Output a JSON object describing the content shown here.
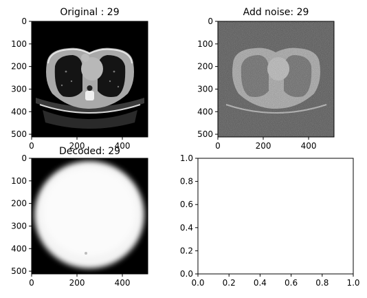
{
  "chart_data": [
    {
      "type": "image",
      "title": "Original : 29",
      "image_content": "chest CT axial slice",
      "x_ticks": [
        "0",
        "200",
        "400"
      ],
      "y_ticks": [
        "0",
        "100",
        "200",
        "300",
        "400",
        "500"
      ],
      "xlim": [
        0,
        512
      ],
      "ylim": [
        512,
        0
      ]
    },
    {
      "type": "image",
      "title": "Add noise: 29",
      "image_content": "chest CT axial slice with heavy random noise",
      "x_ticks": [
        "0",
        "200",
        "400"
      ],
      "y_ticks": [
        "0",
        "100",
        "200",
        "300",
        "400",
        "500"
      ],
      "xlim": [
        0,
        512
      ],
      "ylim": [
        512,
        0
      ]
    },
    {
      "type": "image",
      "title": "Decoded: 29",
      "image_content": "blurry bright circular reconstruction",
      "x_ticks": [
        "0",
        "200",
        "400"
      ],
      "y_ticks": [
        "0",
        "100",
        "200",
        "300",
        "400",
        "500"
      ],
      "xlim": [
        0,
        512
      ],
      "ylim": [
        512,
        0
      ]
    },
    {
      "type": "empty",
      "title": "",
      "x_ticks": [
        "0.0",
        "0.2",
        "0.4",
        "0.6",
        "0.8",
        "1.0"
      ],
      "y_ticks": [
        "0.0",
        "0.2",
        "0.4",
        "0.6",
        "0.8",
        "1.0"
      ],
      "xlim": [
        0,
        1
      ],
      "ylim": [
        0,
        1
      ]
    }
  ]
}
